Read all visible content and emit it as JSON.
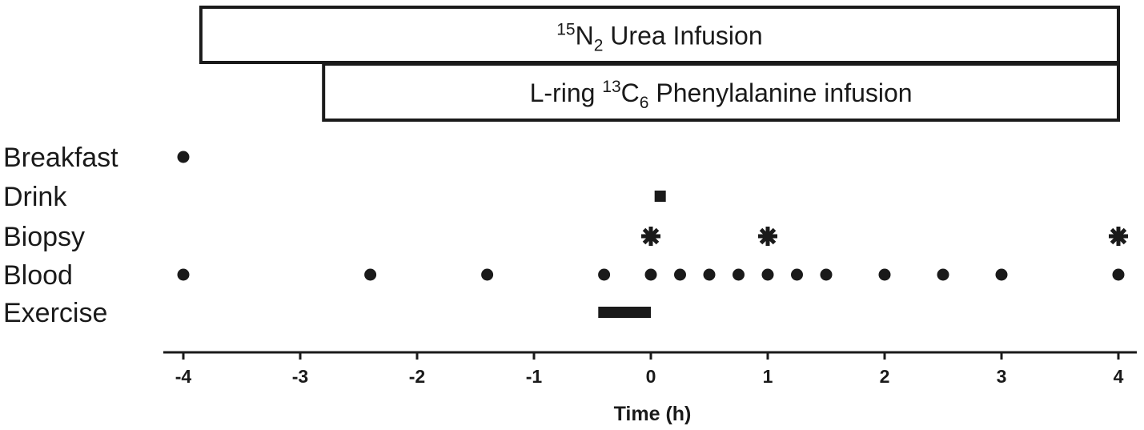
{
  "chart_data": {
    "type": "scatter",
    "title": "",
    "xlabel": "Time (h)",
    "ylabel": "",
    "xlim": [
      -4.17,
      4.17
    ],
    "xticks": [
      -4,
      -3,
      -2,
      -1,
      0,
      1,
      2,
      3,
      4
    ],
    "xtick_labels": [
      "-4",
      "-3",
      "-2",
      "-1",
      "0",
      "1",
      "2",
      "3",
      "4"
    ],
    "grid": false,
    "infusions": [
      {
        "label_pre": "",
        "sup": "15",
        "mid": "N",
        "sub": "2",
        "label_post": " Urea Infusion",
        "start": -3.85,
        "end": 4.0
      },
      {
        "label_pre": "L-ring ",
        "sup": "13",
        "mid": "C",
        "sub": "6",
        "label_post": " Phenylalanine infusion",
        "start": -2.8,
        "end": 4.0
      }
    ],
    "rows": [
      {
        "label": "Breakfast",
        "marker": "circle",
        "times": [
          -4
        ]
      },
      {
        "label": "Drink",
        "marker": "square",
        "times": [
          0.08
        ]
      },
      {
        "label": "Biopsy",
        "marker": "asterisk",
        "times": [
          0,
          1,
          4
        ]
      },
      {
        "label": "Blood",
        "marker": "circle",
        "times": [
          -4,
          -2.4,
          -1.4,
          -0.4,
          0,
          0.25,
          0.5,
          0.75,
          1,
          1.25,
          1.5,
          2,
          2.5,
          3,
          4
        ]
      },
      {
        "label": "Exercise",
        "marker": "bar",
        "start": -0.45,
        "end": 0
      }
    ],
    "colors": {
      "ink": "#1a1a1a",
      "background": "#ffffff"
    }
  }
}
